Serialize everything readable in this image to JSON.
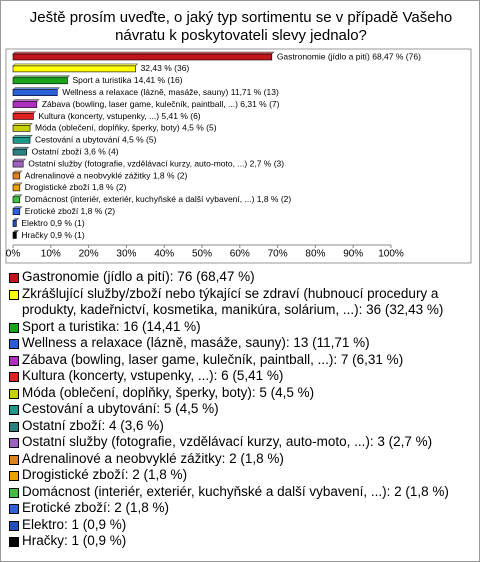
{
  "chart_data": {
    "type": "hbar",
    "title": "Ještě prosím uveďte, o jaký typ sortimentu se v případě Vašeho návratu k poskytovateli slevy jednalo?",
    "categories": [
      "Gastronomie (jídlo a pití)",
      "Zkrášlující služby/zboží nebo týkající se zdraví (hubnoucí procedury a produkty, kadeřnictví, kosmetika, manikúra, solárium, ...)",
      "Sport a turistika",
      "Wellness a relaxace (lázně, masáže, sauny)",
      "Zábava (bowling, laser game, kulečník, paintball, ...)",
      "Kultura (koncerty, vstupenky, ...)",
      "Móda (oblečení, doplňky, šperky, boty)",
      "Cestování a ubytování",
      "Ostatní zboží",
      "Ostatní služby (fotografie, vzdělávací kurzy, auto-moto, ...)",
      "Adrenalinové a neobvyklé zážitky",
      "Drogistické zboží",
      "Domácnost (interiér, exteriér, kuchyňské a další vybavení, ...)",
      "Erotické zboží",
      "Elektro",
      "Hračky"
    ],
    "values": [
      68.47,
      32.43,
      14.41,
      11.71,
      6.31,
      5.41,
      4.5,
      4.5,
      3.6,
      2.7,
      1.8,
      1.8,
      1.8,
      1.8,
      0.9,
      0.9
    ],
    "value_labels": [
      "Gastronomie (jídlo a pití) 68,47 % (76)",
      "32,43 % (36)",
      "Sport a turistika 14,41 % (16)",
      "Wellness a relaxace (lázně, masáže, sauny) 11,71 % (13)",
      "Zábava (bowling, laser game, kulečník, paintball, ...) 6,31 % (7)",
      "Kultura (koncerty, vstupenky, ...) 5,41 % (6)",
      "Móda (oblečení, doplňky, šperky, boty) 4,5 % (5)",
      "Cestování a ubytování 4,5 % (5)",
      "Ostatní zboží 3,6 % (4)",
      "Ostatní služby (fotografie, vzdělávací kurzy, auto-moto, ...) 2,7 % (3)",
      "Adrenalinové a neobvyklé zážitky 1,8 % (2)",
      "Drogistické zboží 1,8 % (2)",
      "Domácnost (interiér, exteriér, kuchyňské a další vybavení, ...) 1,8 % (2)",
      "Erotické zboží 1,8 % (2)",
      "Elektro 0,9 % (1)",
      "Hračky 0,9 % (1)"
    ],
    "legend_labels": [
      "Gastronomie (jídlo a pití): 76 (68,47 %)",
      "Zkrášlující služby/zboží nebo týkající se zdraví (hubnoucí procedury a produkty, kadeřnictví, kosmetika, manikúra, solárium, ...): 36 (32,43 %)",
      "Sport a turistika: 16 (14,41 %)",
      "Wellness a relaxace (lázně, masáže, sauny): 13 (11,71 %)",
      "Zábava (bowling, laser game, kulečník, paintball, ...): 7 (6,31 %)",
      "Kultura (koncerty, vstupenky, ...): 6 (5,41 %)",
      "Móda (oblečení, doplňky, šperky, boty): 5 (4,5 %)",
      "Cestování a ubytování: 5 (4,5 %)",
      "Ostatní zboží: 4 (3,6 %)",
      "Ostatní služby (fotografie, vzdělávací kurzy, auto-moto, ...): 3 (2,7 %)",
      "Adrenalinové a neobvyklé zážitky: 2 (1,8 %)",
      "Drogistické zboží: 2 (1,8 %)",
      "Domácnost (interiér, exteriér, kuchyňské a další vybavení, ...): 2 (1,8 %)",
      "Erotické zboží: 2 (1,8 %)",
      "Elektro: 1 (0,9 %)",
      "Hračky: 1 (0,9 %)"
    ],
    "colors": [
      "#c0151b",
      "#ffff00",
      "#1aa51a",
      "#2b5fd9",
      "#b02fc0",
      "#e02020",
      "#c8d000",
      "#1a9a8a",
      "#2a8080",
      "#a060c0",
      "#e08020",
      "#f0a000",
      "#40c040",
      "#3060e0",
      "#2050c0",
      "#000000"
    ],
    "xlim": [
      0,
      100
    ],
    "xticks": [
      {
        "value": 0,
        "label": "0%"
      },
      {
        "value": 10,
        "label": "10%"
      },
      {
        "value": 20,
        "label": "20%"
      },
      {
        "value": 30,
        "label": "30%"
      },
      {
        "value": 40,
        "label": "40%"
      },
      {
        "value": 50,
        "label": "50%"
      },
      {
        "value": 60,
        "label": "60%"
      },
      {
        "value": 70,
        "label": "70%"
      },
      {
        "value": 80,
        "label": "80%"
      },
      {
        "value": 90,
        "label": "90%"
      },
      {
        "value": 100,
        "label": "100%"
      }
    ]
  }
}
